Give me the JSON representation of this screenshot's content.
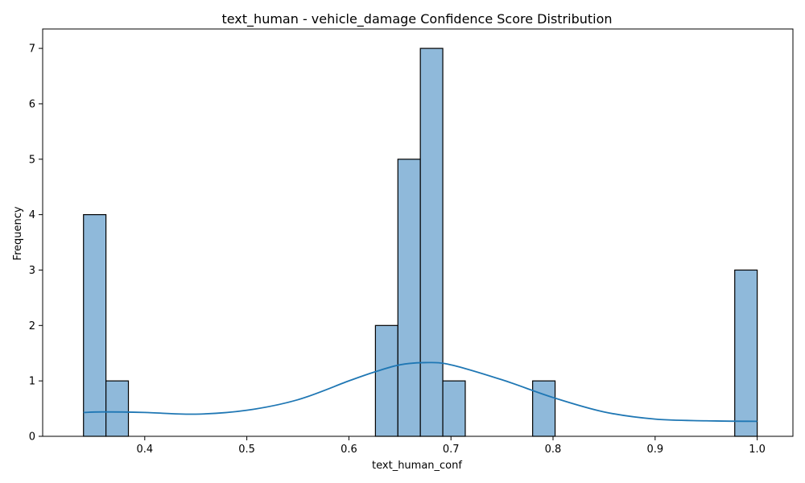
{
  "chart_data": {
    "type": "bar",
    "title": "text_human - vehicle_damage Confidence Score Distribution",
    "xlabel": "text_human_conf",
    "ylabel": "Frequency",
    "xlim": [
      0.3,
      1.035
    ],
    "ylim": [
      0,
      7.35
    ],
    "x_ticks": [
      0.4,
      0.5,
      0.6,
      0.7,
      0.8,
      0.9,
      1.0
    ],
    "x_tick_labels": [
      "0.4",
      "0.5",
      "0.6",
      "0.7",
      "0.8",
      "0.9",
      "1.0"
    ],
    "y_ticks": [
      0,
      1,
      2,
      3,
      4,
      5,
      6,
      7
    ],
    "y_tick_labels": [
      "0",
      "1",
      "2",
      "3",
      "4",
      "5",
      "6",
      "7"
    ],
    "bin_range": [
      0.34,
      1.0
    ],
    "bin_count": 30,
    "bins": [
      {
        "x0": 0.34,
        "x1": 0.362,
        "count": 4
      },
      {
        "x0": 0.362,
        "x1": 0.384,
        "count": 1
      },
      {
        "x0": 0.626,
        "x1": 0.648,
        "count": 2
      },
      {
        "x0": 0.648,
        "x1": 0.67,
        "count": 5
      },
      {
        "x0": 0.67,
        "x1": 0.692,
        "count": 7
      },
      {
        "x0": 0.692,
        "x1": 0.714,
        "count": 1
      },
      {
        "x0": 0.78,
        "x1": 0.802,
        "count": 1
      },
      {
        "x0": 0.978,
        "x1": 1.0,
        "count": 3
      }
    ],
    "kde": {
      "x": [
        0.34,
        0.36,
        0.4,
        0.45,
        0.5,
        0.55,
        0.6,
        0.625,
        0.65,
        0.675,
        0.7,
        0.75,
        0.8,
        0.85,
        0.9,
        0.95,
        1.0
      ],
      "y": [
        0.43,
        0.44,
        0.43,
        0.4,
        0.47,
        0.66,
        1.0,
        1.16,
        1.29,
        1.33,
        1.29,
        1.02,
        0.7,
        0.44,
        0.31,
        0.28,
        0.27
      ]
    },
    "grid": false,
    "colors": {
      "bar_fill": "#8fb9da",
      "bar_edge": "#000000",
      "kde_line": "#1f77b4"
    }
  }
}
